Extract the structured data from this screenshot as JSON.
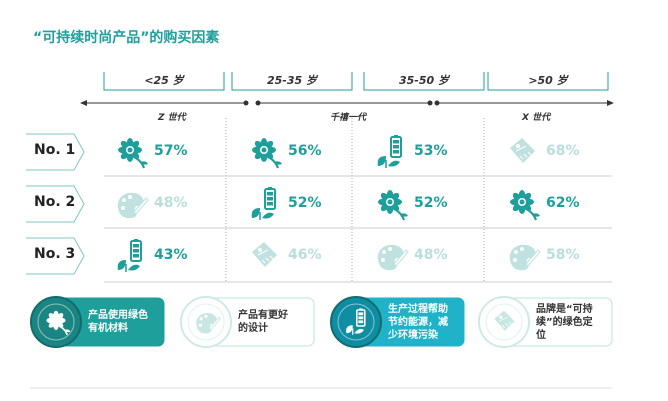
{
  "title": "“可持续时尚产品”的购买因素",
  "colors": {
    "teal": "#1f9f9c",
    "faded": "#bfe2e0",
    "text": "#222222"
  },
  "chart_data": {
    "type": "table",
    "age_groups": [
      "<25 岁",
      "25-35 岁",
      "35-50 岁",
      ">50 岁"
    ],
    "generations": [
      "Z 世代",
      "千禧一代",
      "X 世代"
    ],
    "ranks": [
      "No. 1",
      "No. 2",
      "No. 3"
    ],
    "factors": [
      {
        "key": "green-material",
        "label": "产品使用绿色有机材料",
        "icon": "flower-icon"
      },
      {
        "key": "better-design",
        "label": "产品有更好的设计",
        "icon": "palette-icon"
      },
      {
        "key": "eco-production",
        "label": "生产过程帮助节约能源，减少环境污染",
        "icon": "battery-leaf-icon"
      },
      {
        "key": "green-brand",
        "label": "品牌是“可持续”的绿色定位",
        "icon": "tag-icon"
      }
    ],
    "cells": [
      [
        {
          "factor": "green-material",
          "value": "57%",
          "highlight": true
        },
        {
          "factor": "green-material",
          "value": "56%",
          "highlight": true
        },
        {
          "factor": "eco-production",
          "value": "53%",
          "highlight": true
        },
        {
          "factor": "green-brand",
          "value": "68%",
          "highlight": false
        }
      ],
      [
        {
          "factor": "better-design",
          "value": "48%",
          "highlight": false
        },
        {
          "factor": "eco-production",
          "value": "52%",
          "highlight": true
        },
        {
          "factor": "green-material",
          "value": "52%",
          "highlight": true
        },
        {
          "factor": "green-material",
          "value": "62%",
          "highlight": true
        }
      ],
      [
        {
          "factor": "eco-production",
          "value": "43%",
          "highlight": true
        },
        {
          "factor": "green-brand",
          "value": "46%",
          "highlight": false
        },
        {
          "factor": "better-design",
          "value": "48%",
          "highlight": false
        },
        {
          "factor": "better-design",
          "value": "58%",
          "highlight": false
        }
      ]
    ],
    "legend": [
      {
        "factor": "green-material",
        "lines": [
          "产品使用绿色",
          "有机材料"
        ],
        "style": "dark"
      },
      {
        "factor": "better-design",
        "lines": [
          "产品有更好",
          "的设计"
        ],
        "style": "light"
      },
      {
        "factor": "eco-production",
        "lines": [
          "生产过程帮助",
          "节约能源，减",
          "少环境污染"
        ],
        "style": "bright"
      },
      {
        "factor": "green-brand",
        "lines": [
          "品牌是“可持",
          "续”的绿色定",
          "位"
        ],
        "style": "light"
      }
    ]
  }
}
